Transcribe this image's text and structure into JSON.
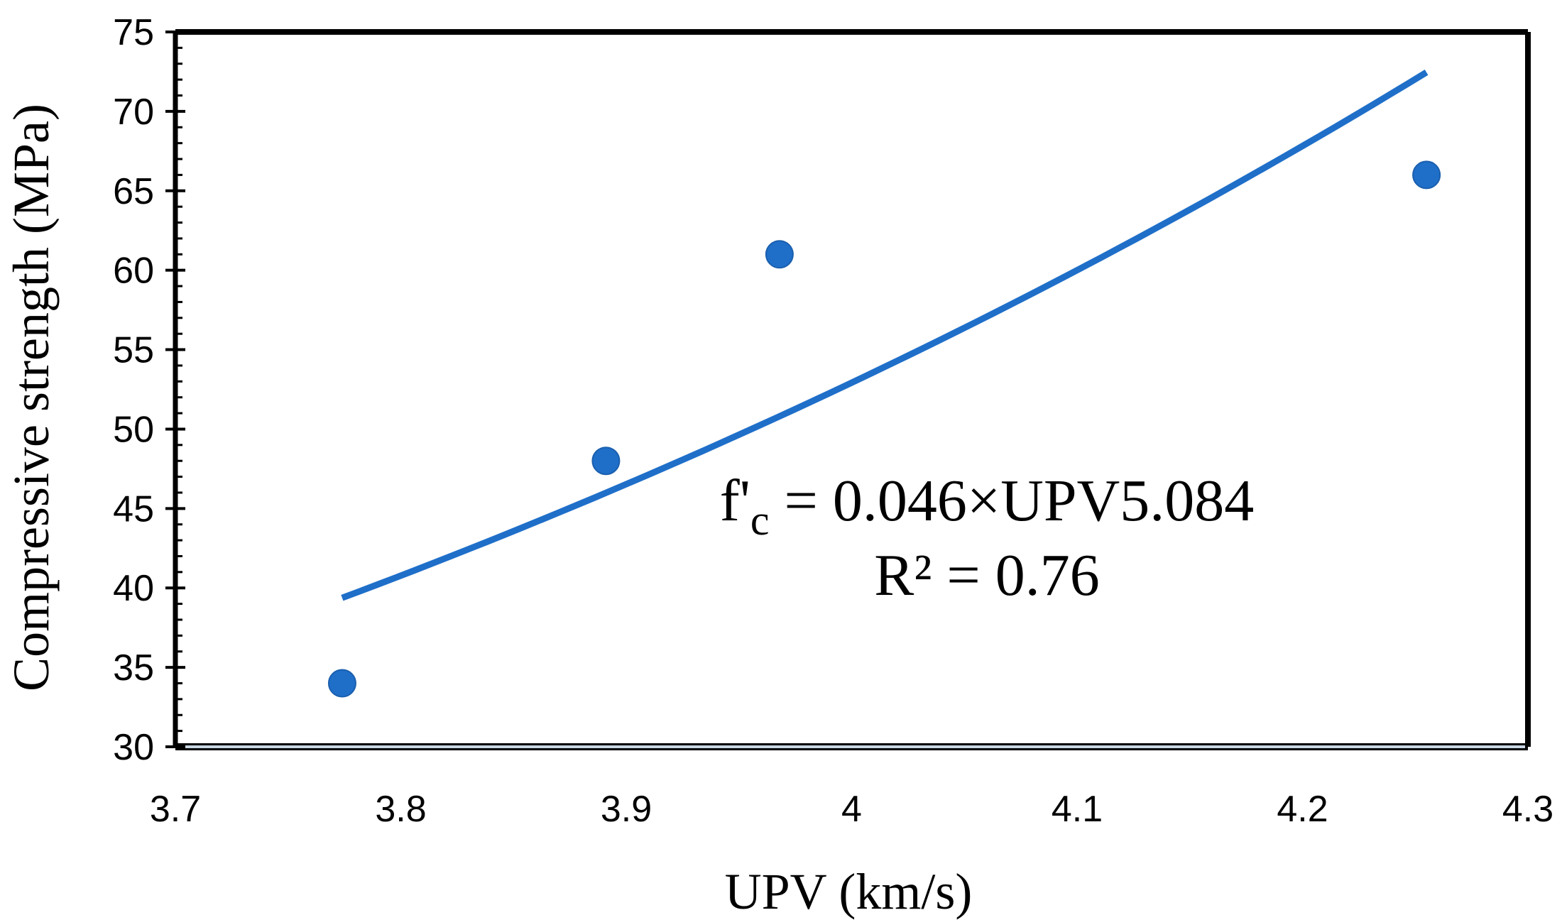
{
  "chart_data": {
    "type": "scatter",
    "xlabel": "UPV (km/s)",
    "ylabel": "Compressive strength (MPa)",
    "xlim": [
      3.7,
      4.3
    ],
    "ylim": [
      30,
      75
    ],
    "x_ticks": [
      "3.7",
      "3.8",
      "3.9",
      "4",
      "4.1",
      "4.2",
      "4.3"
    ],
    "y_ticks": [
      "30",
      "35",
      "40",
      "45",
      "50",
      "55",
      "60",
      "65",
      "70",
      "75"
    ],
    "grid": false,
    "points": [
      {
        "x": 3.774,
        "y": 34
      },
      {
        "x": 3.891,
        "y": 48
      },
      {
        "x": 3.968,
        "y": 61
      },
      {
        "x": 4.255,
        "y": 66
      }
    ],
    "trendline": {
      "type": "power",
      "coefficient": 0.046,
      "exponent": 5.084,
      "x_range": [
        3.774,
        4.255
      ]
    },
    "annotation": {
      "equation_prefix": "f'",
      "equation_subscript": "c",
      "equation_rest": " = 0.046×UPV5.084",
      "r_squared": "R² = 0.76"
    },
    "colors": {
      "marker": "#1f6fc9",
      "trendline": "#1f6fc9",
      "axis": "#000000",
      "frame": "#000000",
      "baseline": "#c9d6e3"
    }
  }
}
